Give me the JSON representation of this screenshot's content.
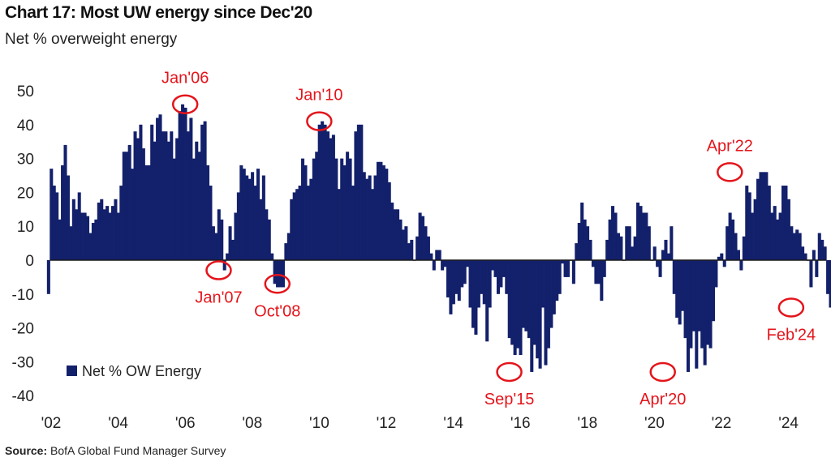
{
  "header": {
    "title": "Chart 17: Most UW energy since Dec'20",
    "subtitle": "Net % overweight energy"
  },
  "footer": {
    "source_label": "Source:",
    "source_text": "BofA Global Fund Manager Survey"
  },
  "colors": {
    "bar": "#13206b",
    "annotation": "#e4141b",
    "zero_line": "#1a1a1a"
  },
  "chart_data": {
    "type": "bar",
    "title": "Chart 17: Most UW energy since Dec'20",
    "subtitle": "Net % overweight energy",
    "ylim": [
      -40,
      50
    ],
    "y_ticks": [
      50,
      40,
      30,
      20,
      10,
      0,
      -10,
      -20,
      -30,
      -40
    ],
    "x_tick_labels": [
      "'02",
      "'04",
      "'06",
      "'08",
      "'10",
      "'12",
      "'14",
      "'16",
      "'18",
      "'20",
      "'22",
      "'24"
    ],
    "x_tick_years": [
      2002,
      2004,
      2006,
      2008,
      2010,
      2012,
      2014,
      2016,
      2018,
      2020,
      2022,
      2024
    ],
    "legend": {
      "label": "Net % OW Energy",
      "position": "bottom-left"
    },
    "annotations": [
      {
        "label": "Jan'06",
        "year": 2006.0,
        "value": 46
      },
      {
        "label": "Jan'07",
        "year": 2007.0,
        "value": -3
      },
      {
        "label": "Oct'08",
        "year": 2008.75,
        "value": -7
      },
      {
        "label": "Jan'10",
        "year": 2010.0,
        "value": 41
      },
      {
        "label": "Sep'15",
        "year": 2015.67,
        "value": -33
      },
      {
        "label": "Apr'20",
        "year": 2020.25,
        "value": -33
      },
      {
        "label": "Apr'22",
        "year": 2022.25,
        "value": 26
      },
      {
        "label": "Feb'24",
        "year": 2024.08,
        "value": -14
      }
    ],
    "series": [
      {
        "name": "Net % OW Energy",
        "start": "2001-12",
        "frequency": "monthly",
        "values": [
          -10,
          27,
          22,
          20,
          12,
          28,
          34,
          25,
          10,
          18,
          15,
          20,
          14,
          14,
          13,
          8,
          11,
          12,
          17,
          18,
          15,
          16,
          14,
          16,
          18,
          14,
          22,
          32,
          32,
          34,
          27,
          38,
          36,
          40,
          33,
          28,
          28,
          40,
          35,
          42,
          43,
          38,
          38,
          35,
          38,
          30,
          36,
          44,
          46,
          45,
          38,
          42,
          30,
          35,
          32,
          40,
          41,
          28,
          22,
          10,
          8,
          15,
          12,
          -3,
          2,
          10,
          6,
          14,
          20,
          28,
          27,
          25,
          24,
          26,
          22,
          27,
          18,
          25,
          15,
          12,
          2,
          -7,
          -8,
          -8,
          -8,
          5,
          8,
          18,
          20,
          21,
          22,
          30,
          28,
          22,
          24,
          30,
          32,
          40,
          41,
          40,
          38,
          36,
          37,
          30,
          21,
          30,
          28,
          32,
          30,
          22,
          38,
          40,
          40,
          26,
          24,
          25,
          21,
          25,
          29,
          29,
          28,
          27,
          23,
          17,
          15,
          15,
          12,
          9,
          10,
          5,
          6,
          0,
          7,
          14,
          13,
          10,
          7,
          2,
          -3,
          3,
          3,
          -3,
          -2,
          -11,
          -16,
          -13,
          -10,
          -12,
          -8,
          -7,
          -2,
          -14,
          -20,
          -22,
          -14,
          -10,
          -13,
          -24,
          -14,
          -3,
          -5,
          -10,
          -8,
          -5,
          -10,
          -23,
          -25,
          -28,
          -26,
          -28,
          -20,
          -21,
          -23,
          -33,
          -25,
          -29,
          -32,
          -14,
          -31,
          -26,
          -20,
          -16,
          -12,
          -10,
          -1,
          -5,
          -5,
          0,
          -7,
          5,
          11,
          17,
          12,
          10,
          6,
          -2,
          -7,
          -7,
          -12,
          -5,
          6,
          12,
          16,
          14,
          8,
          7,
          0,
          10,
          10,
          4,
          7,
          17,
          16,
          14,
          14,
          10,
          0,
          4,
          -2,
          -5,
          3,
          6,
          2,
          10,
          -10,
          -17,
          -19,
          -15,
          -23,
          -33,
          -26,
          -21,
          -32,
          -21,
          -26,
          -31,
          -25,
          -26,
          -18,
          -8,
          1,
          2,
          -2,
          10,
          14,
          12,
          8,
          3,
          -3,
          7,
          22,
          20,
          14,
          18,
          24,
          26,
          26,
          26,
          22,
          14,
          16,
          12,
          14,
          22,
          22,
          18,
          10,
          8,
          9,
          8,
          4,
          2,
          0,
          -8,
          3,
          -5,
          8,
          6,
          4,
          -10,
          -14,
          0
        ]
      }
    ]
  }
}
